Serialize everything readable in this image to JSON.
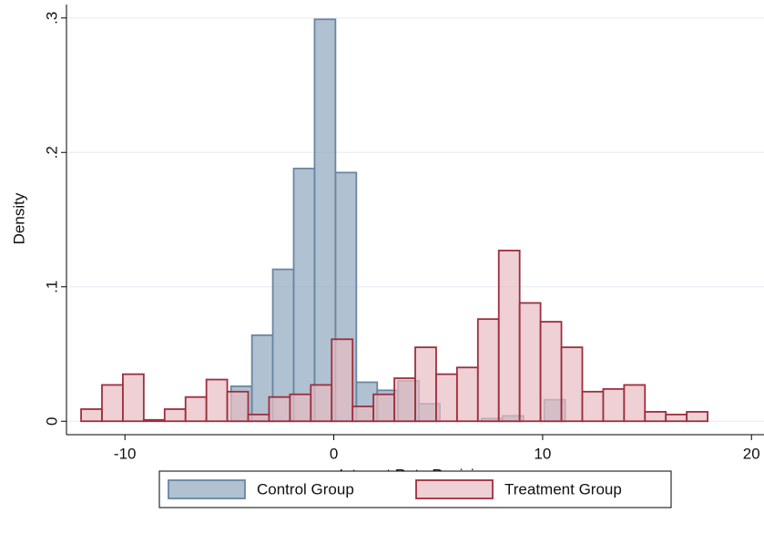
{
  "chart_data": {
    "type": "histogram",
    "xlabel": "Interest Rate Revision",
    "ylabel": "Density",
    "series": [
      {
        "name": "Control Group",
        "color": "#8fa6bd",
        "edge": "#6a86a2",
        "bins": [
          -4.92,
          -3.92,
          -2.92,
          -1.92,
          -0.92,
          0.08,
          1.08,
          2.08,
          3.08,
          4.08,
          5.08,
          6.08,
          7.08,
          8.08,
          9.08,
          10.08,
          11.08
        ],
        "values": [
          0.026,
          0.064,
          0.113,
          0.188,
          0.299,
          0.185,
          0.029,
          0.023,
          0.03,
          0.013,
          0,
          0,
          0.002,
          0.004,
          0,
          0.016
        ]
      },
      {
        "name": "Treatment Group",
        "color": "#e8bcc2",
        "edge": "#9c2f3e",
        "bins": [
          -12.1,
          -11.1,
          -10.1,
          -9.1,
          -8.1,
          -7.1,
          -6.1,
          -5.1,
          -4.1,
          -3.1,
          -2.1,
          -1.1,
          -0.1,
          0.9,
          1.9,
          2.9,
          3.9,
          4.9,
          5.9,
          6.9,
          7.9,
          8.9,
          9.9,
          10.9,
          11.9,
          12.9,
          13.9,
          14.9,
          15.9,
          16.9,
          17.9
        ],
        "values": [
          0.009,
          0.027,
          0.035,
          0.001,
          0.009,
          0.018,
          0.031,
          0.022,
          0.005,
          0.018,
          0.02,
          0.027,
          0.061,
          0.011,
          0.02,
          0.032,
          0.055,
          0.035,
          0.04,
          0.076,
          0.127,
          0.088,
          0.074,
          0.055,
          0.022,
          0.024,
          0.027,
          0.007,
          0.005,
          0.007
        ]
      }
    ],
    "xlim": [
      -12.8,
      20.6
    ],
    "ylim": [
      -0.01,
      0.31
    ],
    "xticks": [
      -10,
      0,
      10,
      20
    ],
    "yticks": [
      0,
      {
        "value": 0.1,
        "label": ".1"
      },
      {
        "value": 0.2,
        "label": ".2"
      },
      {
        "value": 0.3,
        "label": ".3"
      }
    ],
    "grid": true,
    "legend": "bottom"
  }
}
